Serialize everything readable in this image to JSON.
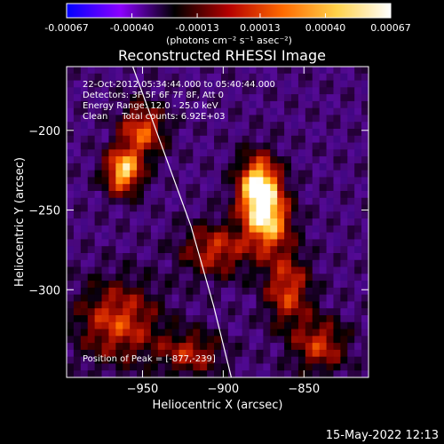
{
  "colorbar": {
    "tick_labels": [
      "-0.00067",
      "-0.00040",
      "-0.00013",
      "0.00013",
      "0.00040",
      "0.00067"
    ],
    "tick_values": [
      -0.00067,
      -0.0004,
      -0.00013,
      0.00013,
      0.0004,
      0.00067
    ],
    "range": [
      -0.00067,
      0.00067
    ],
    "units_label": "(photons cm⁻² s⁻¹ asec⁻²)",
    "colors": [
      "#0000ff",
      "#8c00ff",
      "#000000",
      "#b40000",
      "#ff6a00",
      "#ffd24a",
      "#ffffff"
    ]
  },
  "chart_data": {
    "type": "heatmap",
    "title": "Reconstructed RHESSI Image",
    "xlabel": "Heliocentric X (arcsec)",
    "ylabel": "Heliocentric Y (arcsec)",
    "xlim": [
      -997,
      -810
    ],
    "ylim": [
      -355,
      -160
    ],
    "x_ticks": [
      -950,
      -900,
      -850
    ],
    "x_tick_labels": [
      "−950",
      "−900",
      "−850"
    ],
    "y_ticks": [
      -200,
      -250,
      -300
    ],
    "y_tick_labels": [
      "−200",
      "−250",
      "−300"
    ],
    "info_lines": [
      "22-Oct-2012 05:34:44.000 to 05:40:44.000",
      "Detectors: 3F 5F 6F 7F 8F, Att 0",
      "Energy Range: 12.0 - 25.0 keV",
      "Clean     Total counts: 6.92E+03"
    ],
    "peak_label": "Position of Peak = [-877,-239]",
    "peak": [
      -877,
      -239
    ],
    "sources": [
      {
        "x": -878,
        "y": -236,
        "amp": 1.0,
        "sx": 9,
        "sy": 14
      },
      {
        "x": -872,
        "y": -258,
        "amp": 0.7,
        "sx": 10,
        "sy": 14
      },
      {
        "x": -962,
        "y": -226,
        "amp": 0.85,
        "sx": 8,
        "sy": 10
      },
      {
        "x": -950,
        "y": -200,
        "amp": 0.6,
        "sx": 10,
        "sy": 12
      },
      {
        "x": -905,
        "y": -275,
        "amp": 0.5,
        "sx": 15,
        "sy": 12
      },
      {
        "x": -860,
        "y": -300,
        "amp": 0.55,
        "sx": 10,
        "sy": 16
      },
      {
        "x": -840,
        "y": -335,
        "amp": 0.5,
        "sx": 12,
        "sy": 12
      },
      {
        "x": -965,
        "y": -320,
        "amp": 0.55,
        "sx": 18,
        "sy": 18
      },
      {
        "x": -920,
        "y": -340,
        "amp": 0.45,
        "sx": 14,
        "sy": 10
      }
    ],
    "limb_curve_x": [
      -956,
      -938,
      -920,
      -906,
      -895
    ],
    "limb_curve_y": [
      -160,
      -210,
      -260,
      -310,
      -355
    ],
    "grid": false
  },
  "footer_date": "15-May-2022 12:13"
}
